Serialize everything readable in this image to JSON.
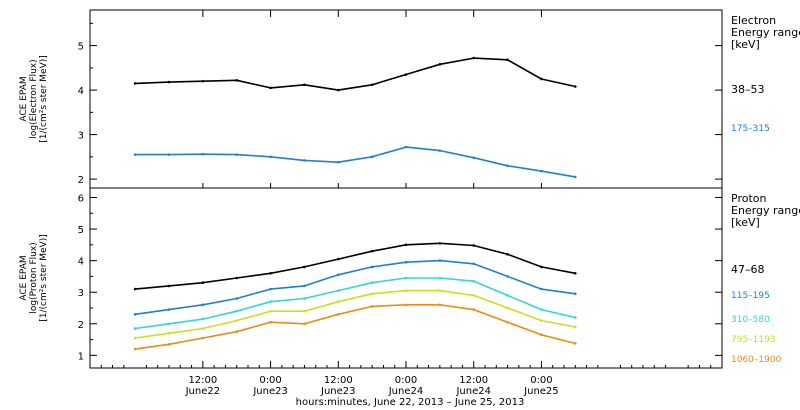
{
  "chart_data": [
    {
      "type": "line",
      "panel": "electron",
      "ylabel_lines": [
        "ACE EPAM",
        "log(Electron Flux)",
        "[1/(cm²s ster MeV)]"
      ],
      "ylim": [
        1.8,
        5.8
      ],
      "yticks": [
        2,
        3,
        4,
        5
      ],
      "legend_title": [
        "Electron",
        "Energy range",
        "[keV]"
      ],
      "legend_placement": "right",
      "x": [
        "06-22 00:00",
        "06-22 06:00",
        "06-22 12:00",
        "06-22 18:00",
        "06-23 00:00",
        "06-23 06:00",
        "06-23 12:00",
        "06-23 18:00",
        "06-24 00:00",
        "06-24 06:00",
        "06-24 12:00",
        "06-24 18:00",
        "06-25 00:00",
        "06-25 06:00"
      ],
      "series": [
        {
          "name": "38–53",
          "color": "#000000",
          "values": [
            4.15,
            4.18,
            4.2,
            4.22,
            4.05,
            4.12,
            4.0,
            4.12,
            4.35,
            4.58,
            4.72,
            4.68,
            4.25,
            4.08
          ]
        },
        {
          "name": "175–315",
          "color": "#1e7fd8",
          "values": [
            2.55,
            2.55,
            2.56,
            2.55,
            2.5,
            2.42,
            2.38,
            2.5,
            2.72,
            2.64,
            2.48,
            2.3,
            2.18,
            2.05
          ]
        }
      ]
    },
    {
      "type": "line",
      "panel": "proton",
      "ylabel_lines": [
        "ACE EPAM",
        "log(Proton Flux)",
        "[1/(cm²s ster MeV)]"
      ],
      "ylim": [
        0.6,
        6.3
      ],
      "yticks": [
        1,
        2,
        3,
        4,
        5,
        6
      ],
      "legend_title": [
        "Proton",
        "Energy range",
        "[keV]"
      ],
      "legend_placement": "right",
      "x": [
        "06-22 00:00",
        "06-22 06:00",
        "06-22 12:00",
        "06-22 18:00",
        "06-23 00:00",
        "06-23 06:00",
        "06-23 12:00",
        "06-23 18:00",
        "06-24 00:00",
        "06-24 06:00",
        "06-24 12:00",
        "06-24 18:00",
        "06-25 00:00",
        "06-25 06:00"
      ],
      "series": [
        {
          "name": "47–68",
          "color": "#000000",
          "values": [
            3.1,
            3.2,
            3.3,
            3.45,
            3.6,
            3.8,
            4.05,
            4.3,
            4.5,
            4.55,
            4.48,
            4.2,
            3.8,
            3.6
          ]
        },
        {
          "name": "115–195",
          "color": "#1e7fd8",
          "values": [
            2.3,
            2.45,
            2.6,
            2.8,
            3.1,
            3.2,
            3.55,
            3.8,
            3.95,
            4.0,
            3.9,
            3.5,
            3.1,
            2.95
          ]
        },
        {
          "name": "310–580",
          "color": "#30d8d0",
          "values": [
            1.85,
            2.0,
            2.15,
            2.4,
            2.7,
            2.8,
            3.05,
            3.3,
            3.45,
            3.45,
            3.35,
            2.9,
            2.45,
            2.2
          ]
        },
        {
          "name": "795–1193",
          "color": "#c8e020",
          "values": [
            1.55,
            1.7,
            1.85,
            2.1,
            2.4,
            2.4,
            2.7,
            2.95,
            3.05,
            3.05,
            2.9,
            2.5,
            2.1,
            1.9
          ]
        },
        {
          "name": "1060–1900",
          "color": "#f08a10",
          "values": [
            1.2,
            1.35,
            1.55,
            1.75,
            2.05,
            2.0,
            2.3,
            2.55,
            2.6,
            2.6,
            2.45,
            2.05,
            1.65,
            1.38
          ]
        }
      ]
    }
  ],
  "x_axis": {
    "range_hours": [
      -8,
      104
    ],
    "ticks": [
      {
        "hours": 12,
        "time": "12:00",
        "date": "June22"
      },
      {
        "hours": 24,
        "time": "0:00",
        "date": "June23"
      },
      {
        "hours": 36,
        "time": "12:00",
        "date": "June23"
      },
      {
        "hours": 48,
        "time": "0:00",
        "date": "June24"
      },
      {
        "hours": 60,
        "time": "12:00",
        "date": "June24"
      },
      {
        "hours": 72,
        "time": "0:00",
        "date": "June25"
      }
    ],
    "xlabel": "hours:minutes, June 22, 2013 – June 25, 2013"
  }
}
